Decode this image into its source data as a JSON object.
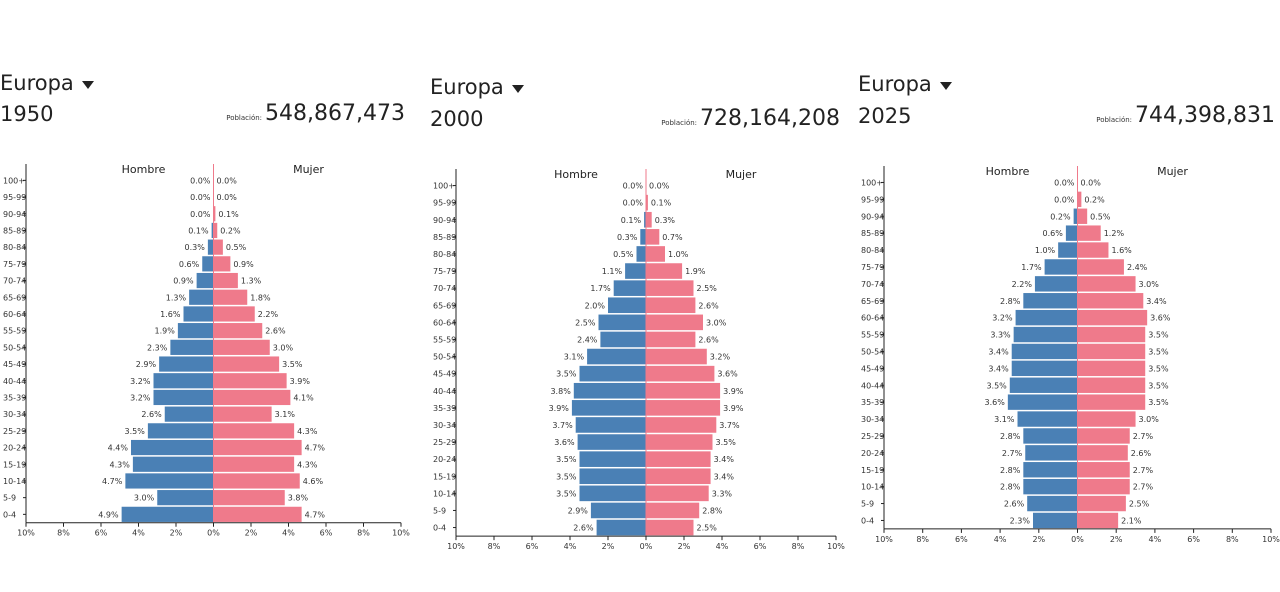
{
  "colors": {
    "male": "#4a80b5",
    "female": "#ef7a8b",
    "axis": "#222222"
  },
  "icons": {
    "dropdown": "caret-down-icon"
  },
  "age_groups": [
    "0-4",
    "5-9",
    "10-14",
    "15-19",
    "20-24",
    "25-29",
    "30-34",
    "35-39",
    "40-44",
    "45-49",
    "50-54",
    "55-59",
    "60-64",
    "65-69",
    "70-74",
    "75-79",
    "80-84",
    "85-89",
    "90-94",
    "95-99",
    "100+"
  ],
  "x_ticks": [
    "10%",
    "8%",
    "6%",
    "4%",
    "2%",
    "0%",
    "2%",
    "4%",
    "6%",
    "8%",
    "10%"
  ],
  "legend": {
    "male": "Hombre",
    "female": "Mujer"
  },
  "population_label": "Población:",
  "chart_data": [
    {
      "type": "bar",
      "region": "Europa",
      "year": "1950",
      "population": "548,867,473",
      "xlim": [
        -10,
        10
      ],
      "male": [
        4.9,
        3.0,
        4.7,
        4.3,
        4.4,
        3.5,
        2.6,
        3.2,
        3.2,
        2.9,
        2.3,
        1.9,
        1.6,
        1.3,
        0.9,
        0.6,
        0.3,
        0.1,
        0.0,
        0.0,
        0.0
      ],
      "female": [
        4.7,
        3.8,
        4.6,
        4.3,
        4.7,
        4.3,
        3.1,
        4.1,
        3.9,
        3.5,
        3.0,
        2.6,
        2.2,
        1.8,
        1.3,
        0.9,
        0.5,
        0.2,
        0.1,
        0.0,
        0.0
      ]
    },
    {
      "type": "bar",
      "region": "Europa",
      "year": "2000",
      "population": "728,164,208",
      "xlim": [
        -10,
        10
      ],
      "male": [
        2.6,
        2.9,
        3.5,
        3.5,
        3.5,
        3.6,
        3.7,
        3.9,
        3.8,
        3.5,
        3.1,
        2.4,
        2.5,
        2.0,
        1.7,
        1.1,
        0.5,
        0.3,
        0.1,
        0.0,
        0.0
      ],
      "female": [
        2.5,
        2.8,
        3.3,
        3.4,
        3.4,
        3.5,
        3.7,
        3.9,
        3.9,
        3.6,
        3.2,
        2.6,
        3.0,
        2.6,
        2.5,
        1.9,
        1.0,
        0.7,
        0.3,
        0.1,
        0.0
      ]
    },
    {
      "type": "bar",
      "region": "Europa",
      "year": "2025",
      "population": "744,398,831",
      "xlim": [
        -10,
        10
      ],
      "male": [
        2.3,
        2.6,
        2.8,
        2.8,
        2.7,
        2.8,
        3.1,
        3.6,
        3.5,
        3.4,
        3.4,
        3.3,
        3.2,
        2.8,
        2.2,
        1.7,
        1.0,
        0.6,
        0.2,
        0.0,
        0.0
      ],
      "female": [
        2.1,
        2.5,
        2.7,
        2.7,
        2.6,
        2.7,
        3.0,
        3.5,
        3.5,
        3.5,
        3.5,
        3.5,
        3.6,
        3.4,
        3.0,
        2.4,
        1.6,
        1.2,
        0.5,
        0.2,
        0.0
      ]
    }
  ]
}
